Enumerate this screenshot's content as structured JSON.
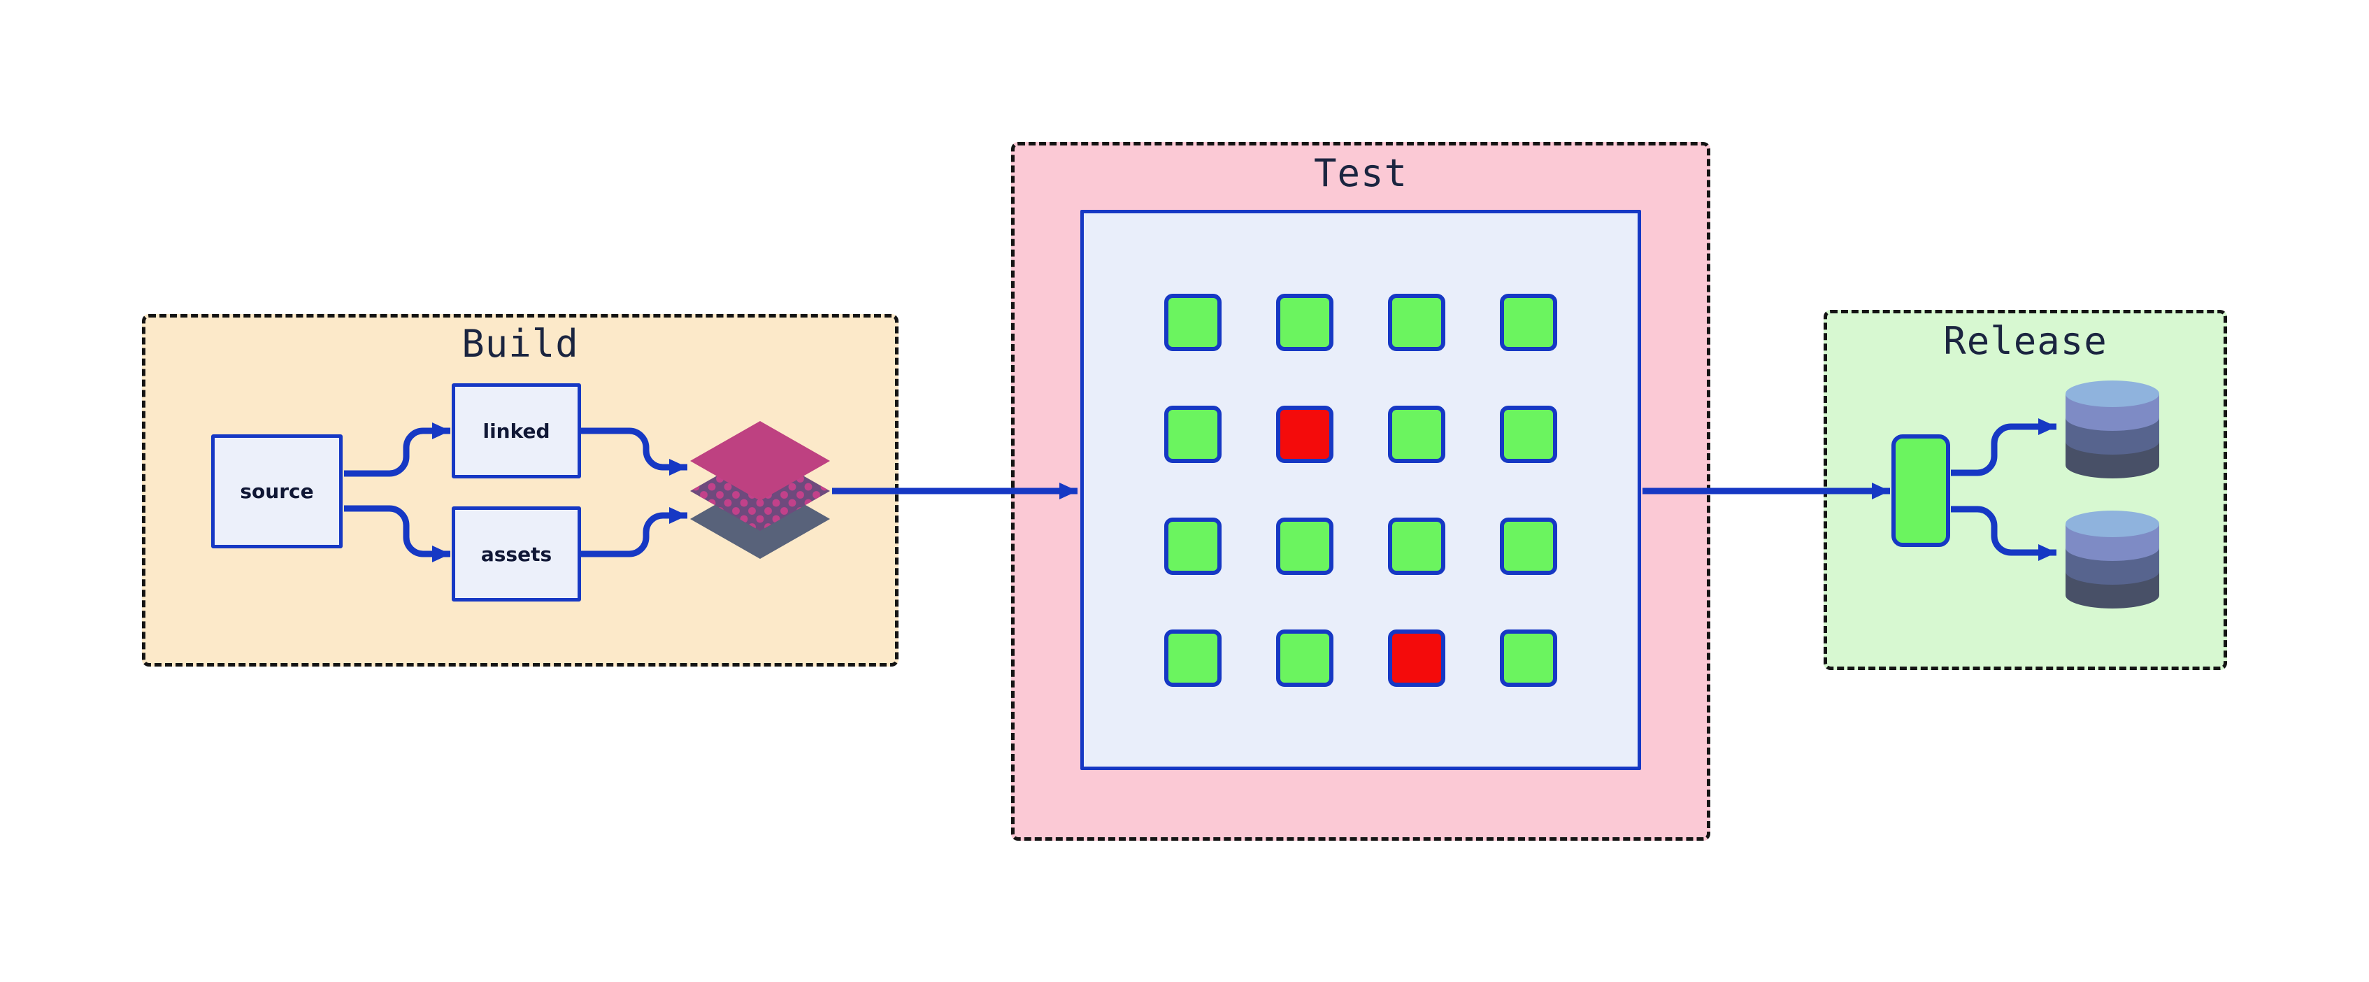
{
  "diagram": {
    "type": "pipeline-flow",
    "sections": {
      "build": {
        "title": "Build",
        "nodes": [
          {
            "id": "source",
            "label": "source"
          },
          {
            "id": "linked",
            "label": "linked"
          },
          {
            "id": "assets",
            "label": "assets"
          }
        ],
        "artifact_icon": "layered-diamonds-icon"
      },
      "test": {
        "title": "Test",
        "grid": {
          "rows": 4,
          "cols": 4,
          "statuses": [
            [
              "pass",
              "pass",
              "pass",
              "pass"
            ],
            [
              "pass",
              "fail",
              "pass",
              "pass"
            ],
            [
              "pass",
              "pass",
              "pass",
              "pass"
            ],
            [
              "pass",
              "pass",
              "fail",
              "pass"
            ]
          ]
        }
      },
      "release": {
        "title": "Release",
        "artifact_icon": "green-pill-icon",
        "targets": [
          {
            "id": "database-1",
            "icon": "database-cylinder-icon"
          },
          {
            "id": "database-2",
            "icon": "database-cylinder-icon"
          }
        ]
      }
    },
    "edges": [
      {
        "from": "source",
        "to": "linked"
      },
      {
        "from": "source",
        "to": "assets"
      },
      {
        "from": "linked",
        "to": "build-artifact"
      },
      {
        "from": "assets",
        "to": "build-artifact"
      },
      {
        "from": "build-artifact",
        "to": "test-panel"
      },
      {
        "from": "test-panel",
        "to": "release-artifact"
      },
      {
        "from": "release-artifact",
        "to": "database-1"
      },
      {
        "from": "release-artifact",
        "to": "database-2"
      }
    ]
  },
  "colors": {
    "page_bg": "#ffffff",
    "border_dash": "#141414",
    "blue": "#1638c4",
    "navy_text": "#1b2540",
    "label_text": "#101735",
    "build_bg": "#fce9c9",
    "test_bg": "#fbc9d5",
    "release_bg": "#d7f8d1",
    "node_bg": "#ecf0fa",
    "panel_bg": "#e9eefa",
    "pass_green": "#6bf45f",
    "fail_red": "#f40b0b",
    "pill_green": "#6bf45f",
    "diamond_top": "#be4181",
    "diamond_mid": "#6e4a7d",
    "diamond_dot": "#c2418a",
    "diamond_bottom": "#58627a",
    "db_top": "#8fb3dd",
    "db_band1": "#7e8bc5",
    "db_band2": "#57648e",
    "db_band3": "#485067"
  }
}
